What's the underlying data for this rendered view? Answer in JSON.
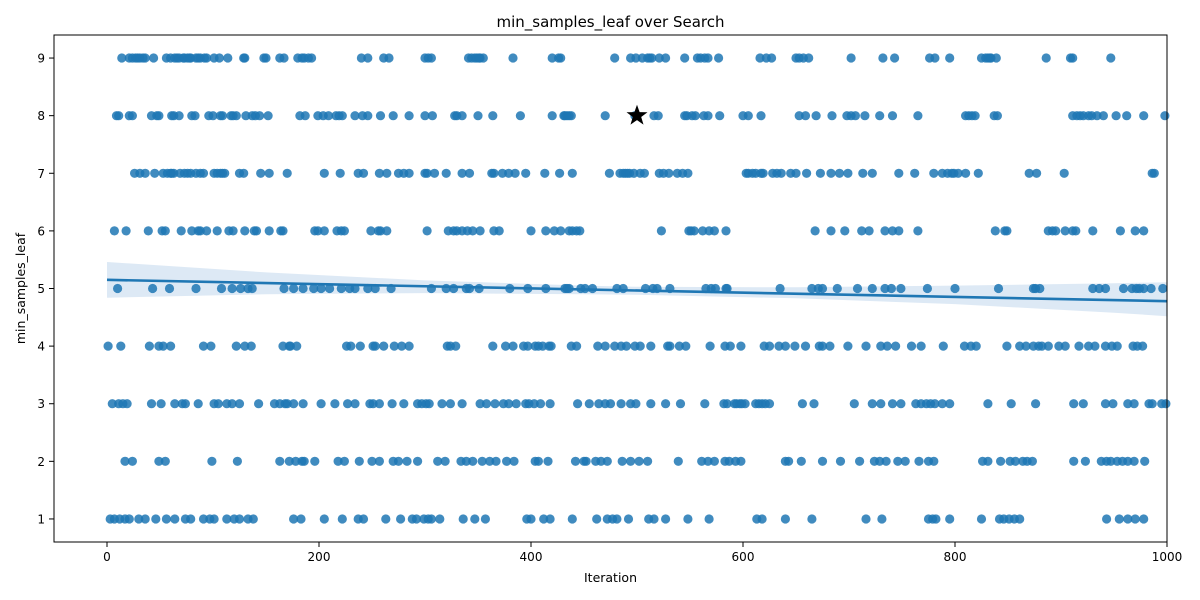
{
  "chart_data": {
    "type": "scatter",
    "title": "min_samples_leaf over Search",
    "xlabel": "Iteration",
    "ylabel": "min_samples_leaf",
    "xlim": [
      -50,
      1000
    ],
    "ylim": [
      0.6,
      9.4
    ],
    "xticks": [
      0,
      200,
      400,
      600,
      800,
      1000
    ],
    "yticks": [
      1,
      2,
      3,
      4,
      5,
      6,
      7,
      8,
      9
    ],
    "grid": false,
    "point_color": "#1f77b4",
    "series": [
      {
        "values_by_level": {
          "9": [
            14,
            21,
            24,
            27,
            29,
            31,
            34,
            36,
            44,
            56,
            60,
            64,
            66,
            68,
            72,
            73,
            76,
            78,
            79,
            84,
            86,
            88,
            92,
            94,
            101,
            106,
            114,
            129,
            130,
            148,
            150,
            163,
            167,
            180,
            184,
            186,
            190,
            193,
            240,
            246,
            261,
            266,
            300,
            303,
            306,
            341,
            344,
            347,
            349,
            351,
            352,
            355,
            383,
            420,
            426,
            428,
            479,
            494,
            499,
            505,
            510,
            512,
            514,
            521,
            527,
            545,
            557,
            560,
            564,
            567,
            577,
            616,
            622,
            627,
            650,
            653,
            657,
            662,
            702,
            732,
            743,
            776,
            781,
            795,
            825,
            829,
            831,
            833,
            834,
            839,
            886,
            909,
            911,
            947
          ],
          "8": [
            9,
            11,
            21,
            24,
            42,
            47,
            49,
            61,
            63,
            68,
            80,
            83,
            96,
            100,
            107,
            109,
            117,
            119,
            122,
            131,
            137,
            140,
            144,
            152,
            182,
            187,
            199,
            204,
            209,
            216,
            219,
            222,
            234,
            241,
            246,
            258,
            270,
            285,
            300,
            307,
            328,
            330,
            335,
            350,
            364,
            390,
            420,
            431,
            432,
            434,
            436,
            438,
            470,
            498,
            516,
            520,
            545,
            547,
            552,
            555,
            563,
            567,
            578,
            600,
            605,
            617,
            653,
            659,
            669,
            684,
            698,
            702,
            706,
            715,
            729,
            741,
            765,
            810,
            813,
            816,
            819,
            837,
            840,
            911,
            915,
            918,
            921,
            926,
            929,
            934,
            940,
            952,
            962,
            978,
            998
          ],
          "7": [
            26,
            31,
            36,
            45,
            53,
            57,
            60,
            61,
            63,
            69,
            73,
            76,
            79,
            84,
            88,
            91,
            101,
            104,
            107,
            109,
            111,
            125,
            129,
            145,
            153,
            170,
            205,
            220,
            237,
            242,
            257,
            264,
            275,
            280,
            285,
            300,
            302,
            309,
            320,
            335,
            342,
            363,
            365,
            373,
            379,
            385,
            395,
            413,
            427,
            439,
            474,
            484,
            487,
            489,
            491,
            493,
            497,
            503,
            507,
            521,
            525,
            530,
            538,
            543,
            548,
            603,
            605,
            609,
            612,
            617,
            619,
            628,
            632,
            636,
            645,
            650,
            660,
            673,
            683,
            691,
            699,
            713,
            722,
            747,
            762,
            780,
            788,
            793,
            797,
            799,
            803,
            810,
            822,
            870,
            877,
            903,
            986,
            988
          ],
          "6": [
            7,
            18,
            39,
            52,
            55,
            70,
            80,
            86,
            88,
            94,
            104,
            115,
            119,
            130,
            139,
            141,
            153,
            164,
            166,
            196,
            199,
            205,
            217,
            221,
            224,
            249,
            256,
            258,
            264,
            302,
            322,
            327,
            330,
            335,
            340,
            345,
            352,
            365,
            370,
            400,
            414,
            422,
            428,
            436,
            439,
            443,
            446,
            523,
            549,
            551,
            554,
            562,
            568,
            573,
            584,
            668,
            683,
            696,
            712,
            719,
            734,
            741,
            747,
            765,
            838,
            847,
            849,
            888,
            892,
            895,
            904,
            911,
            914,
            930,
            956,
            970,
            978
          ],
          "5": [
            10,
            43,
            59,
            84,
            108,
            118,
            126,
            133,
            137,
            167,
            176,
            185,
            195,
            202,
            210,
            221,
            229,
            234,
            246,
            253,
            268,
            306,
            320,
            327,
            339,
            342,
            351,
            380,
            397,
            414,
            432,
            434,
            436,
            447,
            451,
            458,
            481,
            487,
            508,
            515,
            519,
            531,
            565,
            570,
            574,
            584,
            585,
            635,
            665,
            671,
            675,
            689,
            708,
            722,
            734,
            740,
            749,
            774,
            800,
            841,
            874,
            876,
            880,
            930,
            936,
            942,
            959,
            967,
            971,
            974,
            978,
            985,
            996
          ],
          "4": [
            1,
            13,
            40,
            49,
            53,
            60,
            91,
            98,
            122,
            130,
            136,
            166,
            172,
            173,
            179,
            226,
            230,
            239,
            251,
            253,
            261,
            271,
            278,
            285,
            321,
            324,
            329,
            364,
            376,
            383,
            393,
            397,
            404,
            407,
            411,
            417,
            419,
            438,
            443,
            463,
            470,
            479,
            485,
            490,
            498,
            503,
            513,
            529,
            531,
            540,
            546,
            569,
            583,
            588,
            598,
            620,
            625,
            634,
            640,
            649,
            659,
            672,
            675,
            682,
            699,
            716,
            730,
            736,
            744,
            759,
            768,
            789,
            809,
            815,
            820,
            849,
            861,
            867,
            874,
            879,
            882,
            888,
            898,
            904,
            917,
            926,
            932,
            942,
            948,
            953,
            968,
            972,
            977
          ],
          "3": [
            5,
            11,
            15,
            19,
            42,
            51,
            64,
            71,
            74,
            86,
            101,
            105,
            113,
            118,
            125,
            143,
            158,
            163,
            168,
            170,
            176,
            185,
            202,
            215,
            227,
            234,
            248,
            251,
            257,
            269,
            280,
            293,
            297,
            301,
            304,
            316,
            324,
            335,
            352,
            358,
            366,
            374,
            379,
            386,
            395,
            398,
            403,
            409,
            418,
            444,
            455,
            464,
            470,
            475,
            485,
            494,
            499,
            513,
            527,
            541,
            564,
            582,
            585,
            592,
            594,
            597,
            599,
            602,
            612,
            615,
            618,
            621,
            625,
            656,
            667,
            705,
            722,
            730,
            741,
            749,
            763,
            768,
            773,
            777,
            781,
            788,
            795,
            831,
            853,
            876,
            912,
            921,
            942,
            949,
            963,
            969,
            983,
            986,
            995,
            999
          ],
          "2": [
            17,
            24,
            49,
            55,
            99,
            123,
            163,
            172,
            178,
            184,
            186,
            196,
            218,
            224,
            238,
            250,
            257,
            270,
            275,
            283,
            293,
            312,
            319,
            334,
            339,
            345,
            354,
            361,
            367,
            377,
            384,
            404,
            407,
            416,
            442,
            450,
            452,
            461,
            466,
            472,
            486,
            494,
            502,
            510,
            539,
            561,
            567,
            573,
            583,
            587,
            593,
            598,
            640,
            643,
            655,
            675,
            692,
            710,
            724,
            729,
            735,
            746,
            753,
            766,
            775,
            780,
            826,
            831,
            843,
            852,
            857,
            864,
            868,
            873,
            912,
            923,
            938,
            943,
            947,
            953,
            958,
            963,
            969,
            979
          ],
          "1": [
            3,
            7,
            12,
            17,
            21,
            30,
            36,
            46,
            56,
            64,
            74,
            79,
            91,
            97,
            101,
            113,
            120,
            125,
            133,
            138,
            176,
            183,
            205,
            222,
            237,
            242,
            263,
            277,
            288,
            292,
            299,
            303,
            306,
            314,
            336,
            347,
            357,
            396,
            400,
            412,
            418,
            439,
            462,
            472,
            477,
            481,
            492,
            511,
            516,
            527,
            548,
            568,
            613,
            618,
            640,
            665,
            716,
            731,
            775,
            779,
            782,
            795,
            825,
            842,
            846,
            851,
            856,
            861,
            943,
            955,
            963,
            970,
            978
          ]
        }
      }
    ],
    "best_marker": {
      "x": 500,
      "y": 8,
      "shape": "star",
      "color": "#000000"
    },
    "trend_line": {
      "x": [
        0,
        1000
      ],
      "y": [
        5.15,
        4.78
      ],
      "color": "#1f77b4",
      "ci_color": "#c6dbef"
    },
    "confidence_band": {
      "x": [
        0,
        150,
        300,
        450,
        500,
        650,
        800,
        950,
        1000
      ],
      "upper": [
        5.46,
        5.28,
        5.14,
        5.05,
        5.03,
        5.02,
        5.05,
        5.09,
        5.11
      ],
      "lower": [
        4.84,
        4.9,
        4.92,
        4.9,
        4.89,
        4.83,
        4.73,
        4.58,
        4.52
      ]
    }
  }
}
